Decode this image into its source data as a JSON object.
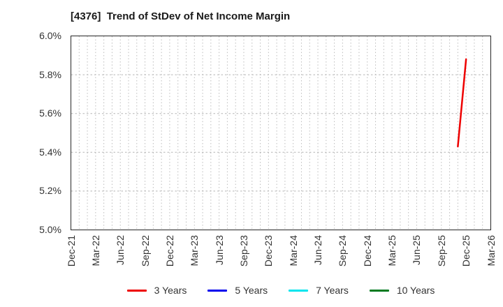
{
  "title": "[4376]  Trend of StDev of Net Income Margin",
  "legend": {
    "items": [
      {
        "label": "3 Years",
        "color": "#ee0000"
      },
      {
        "label": "5 Years",
        "color": "#0000ee"
      },
      {
        "label": "7 Years",
        "color": "#00e5ee"
      },
      {
        "label": "10 Years",
        "color": "#007a1f"
      }
    ]
  },
  "chart_data": {
    "type": "line",
    "title": "[4376]  Trend of StDev of Net Income Margin",
    "xlabel": "",
    "ylabel": "",
    "ylim": [
      5.0,
      6.0
    ],
    "grid": true,
    "legend_position": "bottom",
    "yticks": [
      {
        "label": "6.0%",
        "value": 6.0
      },
      {
        "label": "5.8%",
        "value": 5.8
      },
      {
        "label": "5.6%",
        "value": 5.6
      },
      {
        "label": "5.4%",
        "value": 5.4
      },
      {
        "label": "5.2%",
        "value": 5.2
      },
      {
        "label": "5.0%",
        "value": 5.0
      }
    ],
    "x_axis": {
      "start_label": "Dec-21",
      "end_label": "Mar-26",
      "months_total": 51,
      "tick_month_step": 3,
      "minor_grid_unit_months": 1
    },
    "xticks": [
      "Dec-21",
      "Mar-22",
      "Jun-22",
      "Sep-22",
      "Dec-22",
      "Mar-23",
      "Jun-23",
      "Sep-23",
      "Dec-23",
      "Mar-24",
      "Jun-24",
      "Sep-24",
      "Dec-24",
      "Mar-25",
      "Jun-25",
      "Sep-25",
      "Dec-25",
      "Mar-26"
    ],
    "series": [
      {
        "name": "3 Years",
        "color": "#ee0000",
        "points": [
          {
            "x": "Nov-25",
            "month_index": 47,
            "value": 5.43
          },
          {
            "x": "Dec-25",
            "month_index": 48,
            "value": 5.88
          }
        ]
      },
      {
        "name": "5 Years",
        "color": "#0000ee",
        "points": []
      },
      {
        "name": "7 Years",
        "color": "#00e5ee",
        "points": []
      },
      {
        "name": "10 Years",
        "color": "#007a1f",
        "points": []
      }
    ]
  }
}
